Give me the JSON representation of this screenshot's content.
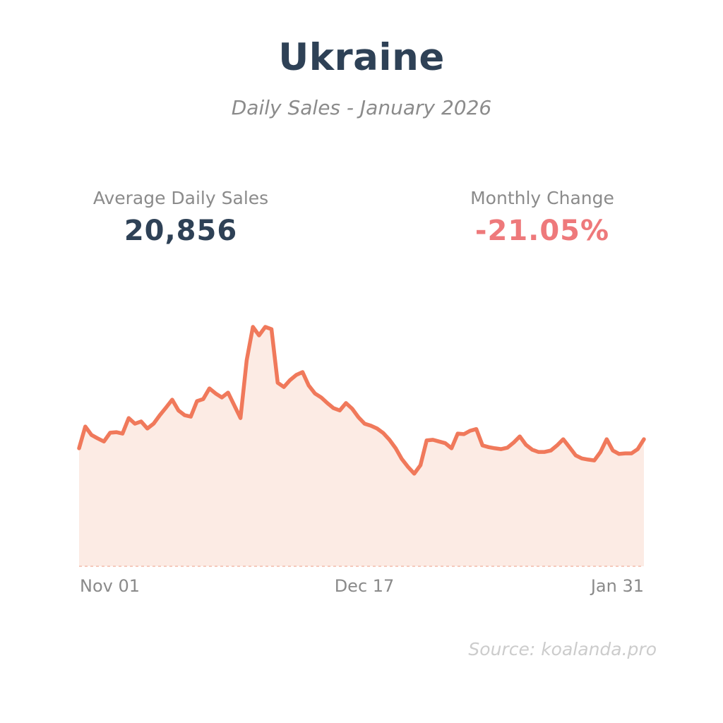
{
  "header": {
    "title": "Ukraine",
    "subtitle": "Daily Sales - January 2026"
  },
  "stats": [
    {
      "label": "Average Daily Sales",
      "value": "20,856"
    },
    {
      "label": "Monthly Change",
      "value": "-21.05%"
    }
  ],
  "source": {
    "text": "Source: koalanda.pro"
  },
  "chart_data": {
    "type": "area",
    "title": "Daily Sales - January 2026",
    "xlabel": "",
    "ylabel": "",
    "x_range": [
      "2025-11-01",
      "2026-01-31"
    ],
    "x_tick_labels": [
      "Nov 01",
      "Dec 17",
      "Jan 31"
    ],
    "ylim": [
      0,
      43400
    ],
    "grid": false,
    "legend": false,
    "colors": {
      "line": "#f0795b",
      "fill": "#fcebe4",
      "baseline_dash": "#f5c9bc",
      "title_navy": "#2e4156",
      "label_gray": "#8b8b8b",
      "negative_red": "#ee797b",
      "source_gray": "#cccccc"
    },
    "values": [
      20900,
      24750,
      23250,
      22650,
      22100,
      23650,
      23750,
      23500,
      26250,
      25250,
      25650,
      24400,
      25250,
      26750,
      28100,
      29500,
      27600,
      26750,
      26500,
      29250,
      29600,
      31500,
      30600,
      29900,
      30750,
      28500,
      26250,
      36500,
      42400,
      40900,
      42400,
      42000,
      32500,
      31750,
      33000,
      33900,
      34400,
      32000,
      30600,
      29900,
      28900,
      28000,
      27600,
      28900,
      27900,
      26400,
      25250,
      24900,
      24400,
      23600,
      22400,
      20900,
      19000,
      17600,
      16400,
      17900,
      22300,
      22400,
      22100,
      21800,
      20900,
      23500,
      23400,
      24000,
      24300,
      21400,
      21100,
      20900,
      20750,
      21000,
      21900,
      23000,
      21500,
      20650,
      20250,
      20250,
      20500,
      21400,
      22500,
      21100,
      19650,
      19100,
      18900,
      18750,
      20250,
      22500,
      20500,
      19900,
      20000,
      20000,
      20750,
      22500
    ]
  }
}
